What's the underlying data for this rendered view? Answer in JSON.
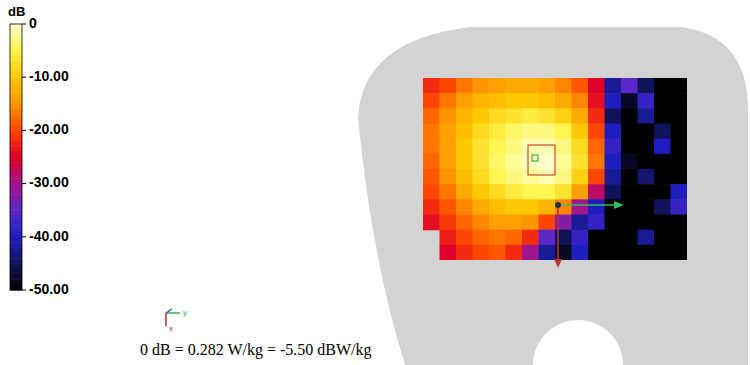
{
  "chart_data": {
    "type": "heatmap",
    "title": "dB",
    "x_label": "y",
    "y_label": "x",
    "note": "0 dB = 0.282 W/kg = -5.50 dBW/kg",
    "tick_labels": false,
    "zlim": [
      -50,
      0
    ],
    "zticks": [
      {
        "value": 0,
        "label": "0"
      },
      {
        "value": -10,
        "label": "-10.00"
      },
      {
        "value": -20,
        "label": "-20.00"
      },
      {
        "value": -30,
        "label": "-30.00"
      },
      {
        "value": -40,
        "label": "-40.00"
      },
      {
        "value": -50,
        "label": "-50.00"
      }
    ],
    "z": [
      [
        -22,
        -20,
        -17,
        -15,
        -14,
        -13,
        -13,
        -14,
        -16,
        -19,
        -25,
        -42,
        -35,
        -45,
        -50,
        -50
      ],
      [
        -20,
        -17,
        -14,
        -12,
        -11,
        -10,
        -10,
        -11,
        -13,
        -16,
        -24,
        -40,
        -48,
        -38,
        -50,
        -50
      ],
      [
        -18,
        -15,
        -12,
        -10,
        -8,
        -7,
        -6,
        -7,
        -9,
        -13,
        -22,
        -45,
        -50,
        -42,
        -50,
        -50
      ],
      [
        -17,
        -14,
        -11,
        -8,
        -6,
        -4,
        -3,
        -3,
        -5,
        -10,
        -20,
        -40,
        -50,
        -50,
        -45,
        -50
      ],
      [
        -17,
        -14,
        -10,
        -7,
        -5,
        -3,
        -1,
        -1,
        -3,
        -8,
        -18,
        -38,
        -50,
        -50,
        -40,
        -50
      ],
      [
        -18,
        -14,
        -10,
        -7,
        -4,
        -2,
        -0.5,
        0,
        -2,
        -7,
        -17,
        -40,
        -48,
        -50,
        -50,
        -50
      ],
      [
        -19,
        -15,
        -11,
        -8,
        -5,
        -3,
        -2,
        -1,
        -3,
        -9,
        -20,
        -42,
        -50,
        -44,
        -50,
        -50
      ],
      [
        -20,
        -17,
        -13,
        -10,
        -8,
        -6,
        -5,
        -5,
        -7,
        -14,
        -28,
        -45,
        -50,
        -50,
        -50,
        -40
      ],
      [
        -22,
        -19,
        -16,
        -13,
        -11,
        -10,
        -10,
        -12,
        -16,
        -30,
        -40,
        -50,
        -50,
        -50,
        -45,
        -38
      ],
      [
        -24,
        -21,
        -18,
        -16,
        -14,
        -14,
        -15,
        -20,
        -32,
        -42,
        -38,
        -50,
        -50,
        -50,
        -50,
        -50
      ],
      [
        null,
        -23,
        -20,
        -18,
        -17,
        -18,
        -22,
        -35,
        -45,
        -38,
        -50,
        -50,
        -50,
        -42,
        -50,
        -50
      ],
      [
        null,
        -25,
        -22,
        -20,
        -19,
        -22,
        -30,
        -42,
        -48,
        -40,
        -50,
        -50,
        -50,
        -50,
        -50,
        -50
      ]
    ]
  }
}
